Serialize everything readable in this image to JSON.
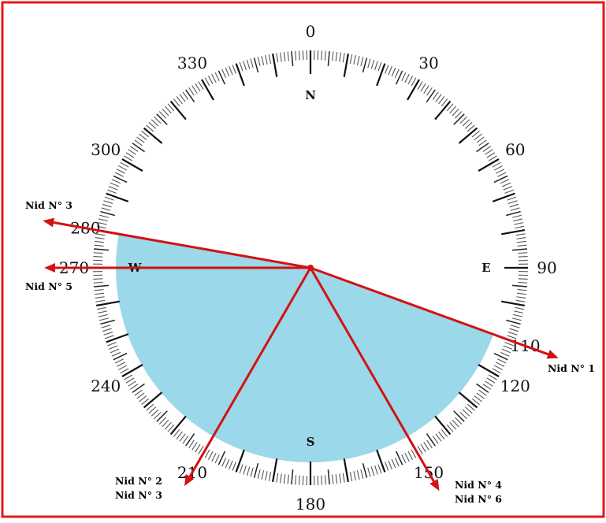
{
  "compass": {
    "degree_labels": [
      {
        "angle": 0,
        "text": "0"
      },
      {
        "angle": 30,
        "text": "30"
      },
      {
        "angle": 60,
        "text": "60"
      },
      {
        "angle": 90,
        "text": "90"
      },
      {
        "angle": 120,
        "text": "120"
      },
      {
        "angle": 150,
        "text": "150"
      },
      {
        "angle": 180,
        "text": "180"
      },
      {
        "angle": 210,
        "text": "210"
      },
      {
        "angle": 240,
        "text": "240"
      },
      {
        "angle": 270,
        "text": "270"
      },
      {
        "angle": 300,
        "text": "300"
      },
      {
        "angle": 330,
        "text": "330"
      },
      {
        "angle": 110,
        "text": "110"
      },
      {
        "angle": 280,
        "text": "280"
      }
    ],
    "cardinals": {
      "north": "N",
      "east": "E",
      "south": "S",
      "west": "W"
    }
  },
  "sector": {
    "from_deg": 110,
    "to_deg": 280,
    "color": "#9ad8ea"
  },
  "arrow_color": "#d41111",
  "frame_color": "#e11b1b",
  "arrows": [
    {
      "bearing": 280,
      "labels": [
        "Nid N° 3"
      ]
    },
    {
      "bearing": 270,
      "labels": [
        "Nid N° 5"
      ]
    },
    {
      "bearing": 110,
      "labels": [
        "Nid N° 1"
      ]
    },
    {
      "bearing": 210,
      "labels": [
        "Nid N° 2",
        "Nid N° 3"
      ]
    },
    {
      "bearing": 150,
      "labels": [
        "Nid N° 4",
        "Nid N° 6"
      ]
    }
  ]
}
